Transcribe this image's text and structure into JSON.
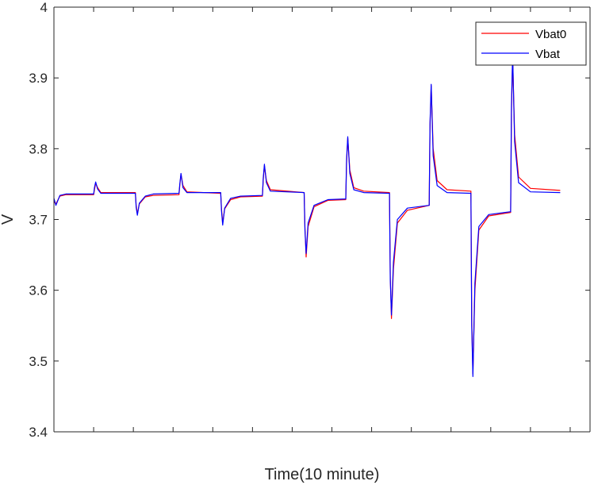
{
  "chart_data": {
    "type": "line",
    "title": "",
    "xlabel": "Time(10 minute)",
    "ylabel": "V",
    "xlim": [
      0,
      13.5
    ],
    "ylim": [
      3.4,
      4.0
    ],
    "yticks": [
      3.4,
      3.5,
      3.6,
      3.7,
      3.8,
      3.9,
      4.0
    ],
    "ytick_labels": [
      "3.4",
      "3.5",
      "3.6",
      "3.7",
      "3.8",
      "3.9",
      "4"
    ],
    "xticks": [
      1,
      2,
      3,
      4,
      5,
      6,
      7,
      8,
      9,
      10,
      11,
      12,
      13
    ],
    "grid": false,
    "legend": {
      "position": "top-right",
      "entries": [
        "Vbat0",
        "Vbat"
      ]
    },
    "colors": {
      "Vbat0": "#ff0000",
      "Vbat": "#0000ff",
      "axis": "#262626"
    },
    "series": [
      {
        "name": "Vbat0",
        "values": [
          [
            0.0,
            3.725
          ],
          [
            0.05,
            3.722
          ],
          [
            0.15,
            3.733
          ],
          [
            0.3,
            3.735
          ],
          [
            1.0,
            3.735
          ],
          [
            1.02,
            3.742
          ],
          [
            1.05,
            3.751
          ],
          [
            1.1,
            3.745
          ],
          [
            1.18,
            3.738
          ],
          [
            2.05,
            3.738
          ],
          [
            2.07,
            3.72
          ],
          [
            2.1,
            3.708
          ],
          [
            2.15,
            3.722
          ],
          [
            2.3,
            3.732
          ],
          [
            2.5,
            3.734
          ],
          [
            3.15,
            3.735
          ],
          [
            3.17,
            3.748
          ],
          [
            3.2,
            3.764
          ],
          [
            3.25,
            3.748
          ],
          [
            3.35,
            3.739
          ],
          [
            4.2,
            3.737
          ],
          [
            4.22,
            3.715
          ],
          [
            4.25,
            3.695
          ],
          [
            4.3,
            3.715
          ],
          [
            4.45,
            3.728
          ],
          [
            4.7,
            3.732
          ],
          [
            5.25,
            3.733
          ],
          [
            5.27,
            3.755
          ],
          [
            5.3,
            3.776
          ],
          [
            5.35,
            3.755
          ],
          [
            5.45,
            3.742
          ],
          [
            6.3,
            3.738
          ],
          [
            6.32,
            3.69
          ],
          [
            6.35,
            3.647
          ],
          [
            6.4,
            3.69
          ],
          [
            6.55,
            3.718
          ],
          [
            6.9,
            3.727
          ],
          [
            7.35,
            3.728
          ],
          [
            7.37,
            3.78
          ],
          [
            7.4,
            3.815
          ],
          [
            7.45,
            3.77
          ],
          [
            7.55,
            3.745
          ],
          [
            7.8,
            3.74
          ],
          [
            8.45,
            3.738
          ],
          [
            8.47,
            3.62
          ],
          [
            8.5,
            3.56
          ],
          [
            8.55,
            3.63
          ],
          [
            8.65,
            3.695
          ],
          [
            8.9,
            3.713
          ],
          [
            9.45,
            3.72
          ],
          [
            9.47,
            3.83
          ],
          [
            9.5,
            3.889
          ],
          [
            9.55,
            3.8
          ],
          [
            9.65,
            3.755
          ],
          [
            9.9,
            3.742
          ],
          [
            10.5,
            3.74
          ],
          [
            10.52,
            3.56
          ],
          [
            10.55,
            3.482
          ],
          [
            10.6,
            3.6
          ],
          [
            10.7,
            3.685
          ],
          [
            10.95,
            3.705
          ],
          [
            11.5,
            3.71
          ],
          [
            11.52,
            3.85
          ],
          [
            11.55,
            3.93
          ],
          [
            11.6,
            3.82
          ],
          [
            11.7,
            3.76
          ],
          [
            12.0,
            3.744
          ],
          [
            12.75,
            3.741
          ]
        ]
      },
      {
        "name": "Vbat",
        "values": [
          [
            0.0,
            3.73
          ],
          [
            0.05,
            3.72
          ],
          [
            0.15,
            3.734
          ],
          [
            0.3,
            3.736
          ],
          [
            1.0,
            3.736
          ],
          [
            1.02,
            3.745
          ],
          [
            1.05,
            3.753
          ],
          [
            1.1,
            3.743
          ],
          [
            1.18,
            3.737
          ],
          [
            2.05,
            3.737
          ],
          [
            2.07,
            3.717
          ],
          [
            2.1,
            3.706
          ],
          [
            2.15,
            3.723
          ],
          [
            2.3,
            3.733
          ],
          [
            2.5,
            3.736
          ],
          [
            3.15,
            3.737
          ],
          [
            3.17,
            3.75
          ],
          [
            3.2,
            3.765
          ],
          [
            3.25,
            3.745
          ],
          [
            3.35,
            3.738
          ],
          [
            4.2,
            3.738
          ],
          [
            4.22,
            3.712
          ],
          [
            4.25,
            3.692
          ],
          [
            4.3,
            3.716
          ],
          [
            4.45,
            3.73
          ],
          [
            4.7,
            3.733
          ],
          [
            5.25,
            3.734
          ],
          [
            5.27,
            3.758
          ],
          [
            5.3,
            3.778
          ],
          [
            5.35,
            3.752
          ],
          [
            5.45,
            3.74
          ],
          [
            6.3,
            3.738
          ],
          [
            6.32,
            3.685
          ],
          [
            6.35,
            3.652
          ],
          [
            6.4,
            3.695
          ],
          [
            6.55,
            3.72
          ],
          [
            6.9,
            3.728
          ],
          [
            7.35,
            3.729
          ],
          [
            7.37,
            3.785
          ],
          [
            7.4,
            3.817
          ],
          [
            7.45,
            3.765
          ],
          [
            7.55,
            3.742
          ],
          [
            7.8,
            3.738
          ],
          [
            8.45,
            3.737
          ],
          [
            8.47,
            3.615
          ],
          [
            8.5,
            3.565
          ],
          [
            8.55,
            3.64
          ],
          [
            8.65,
            3.7
          ],
          [
            8.9,
            3.716
          ],
          [
            9.45,
            3.72
          ],
          [
            9.47,
            3.835
          ],
          [
            9.5,
            3.891
          ],
          [
            9.55,
            3.79
          ],
          [
            9.65,
            3.748
          ],
          [
            9.9,
            3.738
          ],
          [
            10.5,
            3.737
          ],
          [
            10.52,
            3.55
          ],
          [
            10.55,
            3.478
          ],
          [
            10.6,
            3.61
          ],
          [
            10.7,
            3.69
          ],
          [
            10.95,
            3.707
          ],
          [
            11.5,
            3.711
          ],
          [
            11.52,
            3.86
          ],
          [
            11.55,
            3.935
          ],
          [
            11.6,
            3.81
          ],
          [
            11.7,
            3.752
          ],
          [
            12.0,
            3.739
          ],
          [
            12.75,
            3.738
          ]
        ]
      }
    ]
  }
}
